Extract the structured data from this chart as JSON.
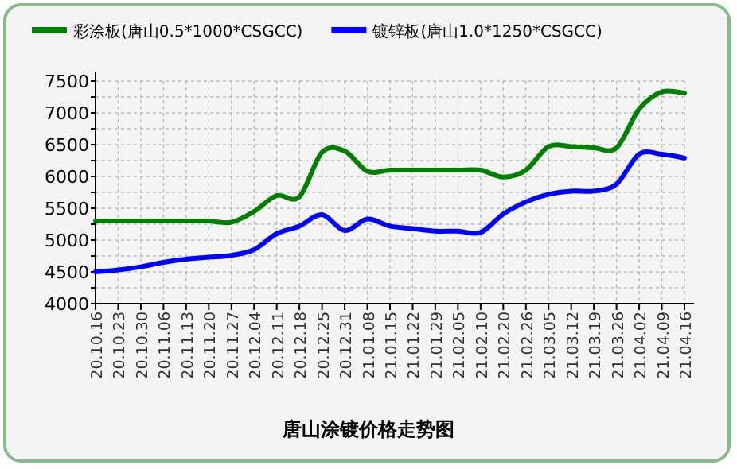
{
  "chart_data": {
    "type": "line",
    "title": "唐山涂镀价格走势图",
    "categories": [
      "20.10.16",
      "20.10.23",
      "20.10.30",
      "20.11.06",
      "20.11.13",
      "20.11.20",
      "20.11.27",
      "20.12.04",
      "20.12.11",
      "20.12.18",
      "20.12.25",
      "20.12.31",
      "21.01.08",
      "21.01.15",
      "21.01.22",
      "21.01.29",
      "21.02.05",
      "21.02.10",
      "21.02.20",
      "21.02.26",
      "21.03.05",
      "21.03.12",
      "21.03.19",
      "21.03.26",
      "21.04.02",
      "21.04.09",
      "21.04.16"
    ],
    "series": [
      {
        "name": "彩涂板(唐山0.5*1000*CSGCC)",
        "color": "#008000",
        "values": [
          5300,
          5300,
          5300,
          5300,
          5300,
          5300,
          5280,
          5450,
          5700,
          5680,
          6380,
          6400,
          6080,
          6100,
          6100,
          6100,
          6100,
          6100,
          5990,
          6100,
          6470,
          6470,
          6450,
          6450,
          7060,
          7330,
          7310
        ]
      },
      {
        "name": "镀锌板(唐山1.0*1250*CSGCC)",
        "color": "#0000ff",
        "values": [
          4500,
          4530,
          4580,
          4650,
          4700,
          4730,
          4760,
          4850,
          5100,
          5220,
          5400,
          5150,
          5330,
          5220,
          5180,
          5140,
          5140,
          5120,
          5410,
          5600,
          5720,
          5770,
          5770,
          5880,
          6350,
          6350,
          6290
        ]
      }
    ],
    "ylim": [
      4000,
      7500
    ],
    "yticks": [
      4000,
      {
        "value": 4250,
        "label": null
      },
      4500,
      {
        "value": 4750,
        "label": null
      },
      5000,
      {
        "value": 5250,
        "label": null
      },
      5500,
      {
        "value": 5750,
        "label": null
      },
      6000,
      {
        "value": 6250,
        "label": null
      },
      6500,
      {
        "value": 6750,
        "label": null
      },
      7000,
      {
        "value": 7250,
        "label": null
      },
      7500
    ],
    "grid": true,
    "legend": "top",
    "line_style": "solid",
    "marker": "none"
  }
}
